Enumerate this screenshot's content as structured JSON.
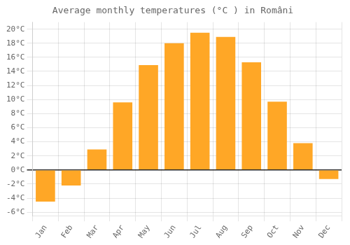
{
  "chart_data": {
    "type": "bar",
    "title": "Average monthly temperatures (°C ) in Români",
    "categories": [
      "Jan",
      "Feb",
      "Mar",
      "Apr",
      "May",
      "Jun",
      "Jul",
      "Aug",
      "Sep",
      "Oct",
      "Nov",
      "Dec"
    ],
    "values": [
      -4.5,
      -2.2,
      2.9,
      9.6,
      14.9,
      18.0,
      19.5,
      18.9,
      15.3,
      9.7,
      3.8,
      -1.3
    ],
    "color": "#FFA726",
    "ylim": [
      -6.5,
      21.0
    ],
    "yticks": [
      {
        "value": -6,
        "label": "-6°C"
      },
      {
        "value": -4,
        "label": "-4°C"
      },
      {
        "value": -2,
        "label": "-2°C"
      },
      {
        "value": 0,
        "label": "0°C"
      },
      {
        "value": 2,
        "label": "2°C"
      },
      {
        "value": 4,
        "label": "4°C"
      },
      {
        "value": 6,
        "label": "6°C"
      },
      {
        "value": 8,
        "label": "8°C"
      },
      {
        "value": 10,
        "label": "10°C"
      },
      {
        "value": 12,
        "label": "12°C"
      },
      {
        "value": 14,
        "label": "14°C"
      },
      {
        "value": 16,
        "label": "16°C"
      },
      {
        "value": 18,
        "label": "18°C"
      },
      {
        "value": 20,
        "label": "20°C"
      }
    ],
    "grid": true
  }
}
